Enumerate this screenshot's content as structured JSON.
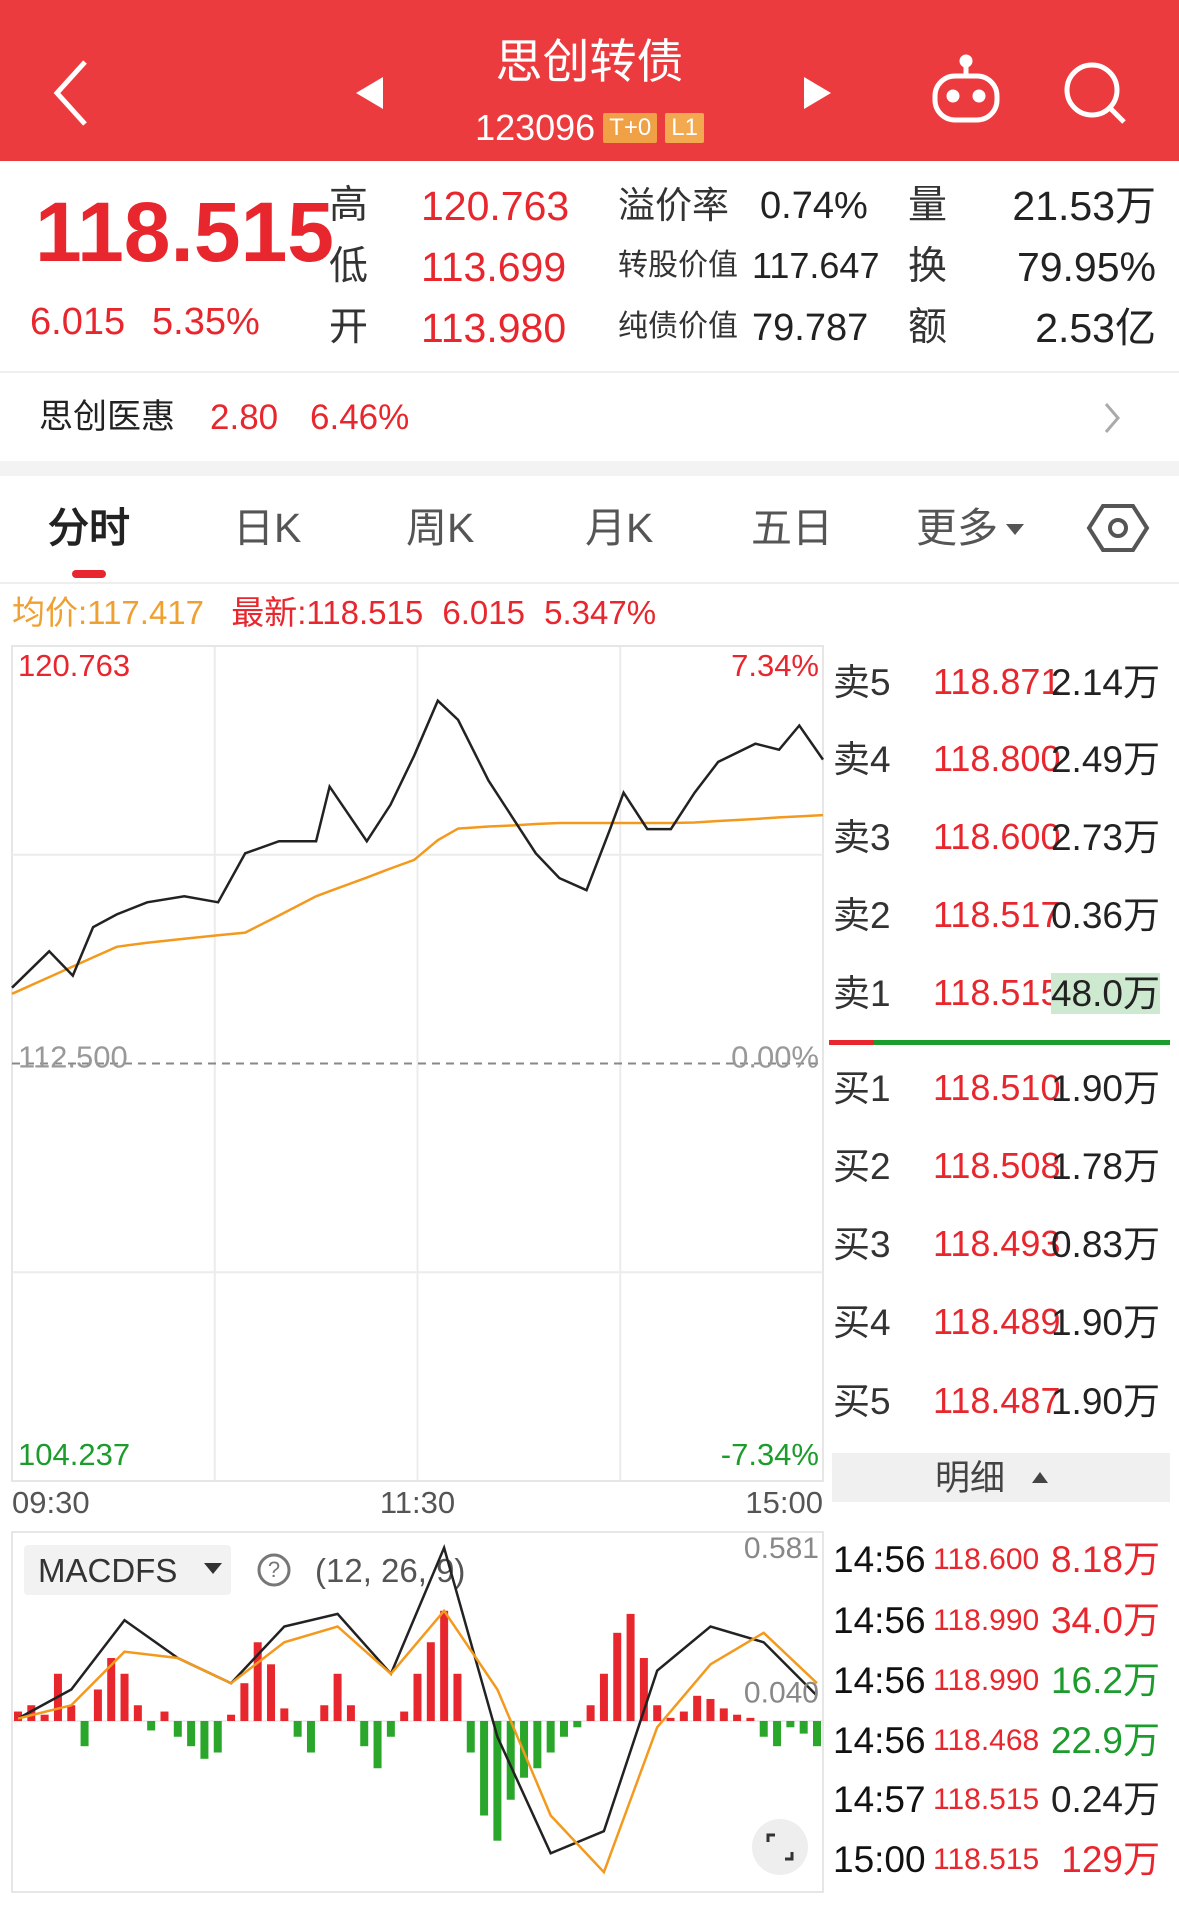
{
  "header": {
    "title": "思创转债",
    "code": "123096",
    "badges": [
      "T+0",
      "L1"
    ]
  },
  "quote": {
    "price": "118.515",
    "change": "6.015",
    "change_pct": "5.35%",
    "stats": [
      [
        {
          "label": "高",
          "value": "120.763"
        },
        {
          "label": "低",
          "value": "113.699"
        },
        {
          "label": "开",
          "value": "113.980"
        }
      ],
      [
        {
          "label": "溢价率",
          "value": "0.74%"
        },
        {
          "label": "转股价值",
          "value": "117.647"
        },
        {
          "label": "纯债价值",
          "value": "79.787"
        }
      ],
      [
        {
          "label": "量",
          "value": "21.53万"
        },
        {
          "label": "换",
          "value": "79.95%"
        },
        {
          "label": "额",
          "value": "2.53亿"
        }
      ]
    ]
  },
  "underlying": {
    "name": "思创医惠",
    "price": "2.80",
    "change_pct": "6.46%"
  },
  "tabs": [
    "分时",
    "日K",
    "周K",
    "月K",
    "五日",
    "更多"
  ],
  "summary": {
    "avg_label": "均价:",
    "avg": "117.417",
    "latest_label": "最新:",
    "latest": "118.515",
    "change": "6.015",
    "change_pct": "5.347%"
  },
  "chart_data": [
    {
      "type": "line",
      "x": [
        0,
        11,
        18,
        24,
        31,
        40,
        51,
        61,
        69,
        79,
        90,
        94,
        105,
        112,
        119,
        126,
        132,
        141,
        148,
        155,
        162,
        170,
        177,
        181,
        188,
        195,
        202,
        209,
        220,
        227,
        233,
        240
      ],
      "xlim": [
        0,
        240
      ],
      "xticks": [
        {
          "value": 0,
          "label": "09:30"
        },
        {
          "value": 120,
          "label": "11:30"
        },
        {
          "value": 240,
          "label": "15:00"
        }
      ],
      "ylim": [
        104.237,
        120.763
      ],
      "yticks": [
        120.763,
        {
          "value": 112.5,
          "label": "112.500"
        },
        104.237
      ],
      "y2lim": [
        -7.34,
        7.34
      ],
      "y2ticks": [
        {
          "value": 7.34,
          "label": "7.34%"
        },
        {
          "value": 0,
          "label": "0.00%"
        },
        {
          "value": -7.34,
          "label": "-7.34%"
        }
      ],
      "series": [
        {
          "color": "#222222",
          "values": [
            114.0,
            114.72,
            114.24,
            115.2,
            115.45,
            115.69,
            115.81,
            115.69,
            116.66,
            116.9,
            116.9,
            117.98,
            116.9,
            117.62,
            118.59,
            119.68,
            119.3,
            118.1,
            117.38,
            116.66,
            116.17,
            115.93,
            117.14,
            117.86,
            117.14,
            117.14,
            117.86,
            118.47,
            118.83,
            118.71,
            119.19,
            118.515
          ]
        },
        {
          "color": "#f39a1e",
          "values": [
            113.88,
            114.21,
            114.42,
            114.6,
            114.81,
            114.89,
            114.97,
            115.04,
            115.09,
            115.43,
            115.81,
            115.91,
            116.18,
            116.36,
            116.53,
            116.92,
            117.15,
            117.19,
            117.21,
            117.24,
            117.26,
            117.26,
            117.26,
            117.26,
            117.26,
            117.26,
            117.27,
            117.3,
            117.34,
            117.37,
            117.39,
            117.417
          ]
        }
      ]
    },
    {
      "type": "macd",
      "title": "MACDFS",
      "subtitle": "(12, 26, 9)",
      "ylim": [
        -0.527,
        0.581
      ],
      "yticks": [
        0.581,
        {
          "value": 0.04,
          "label": "0.040"
        }
      ],
      "xlim": [
        0,
        60
      ],
      "histogram": {
        "up_color": "#e8262d",
        "down_color": "#2aa62a",
        "values": [
          0.03,
          0.05,
          0.02,
          0.15,
          0.05,
          -0.08,
          0.1,
          0.2,
          0.15,
          0.05,
          -0.03,
          0.03,
          -0.05,
          -0.08,
          -0.12,
          -0.1,
          0.02,
          0.12,
          0.25,
          0.18,
          0.04,
          -0.05,
          -0.1,
          0.05,
          0.15,
          0.05,
          -0.08,
          -0.15,
          -0.05,
          0.03,
          0.15,
          0.25,
          0.35,
          0.15,
          -0.1,
          -0.3,
          -0.38,
          -0.25,
          -0.18,
          -0.15,
          -0.1,
          -0.05,
          -0.02,
          0.05,
          0.15,
          0.28,
          0.34,
          0.2,
          0.05,
          0.01,
          0.03,
          0.08,
          0.07,
          0.04,
          0.02,
          0.01,
          -0.05,
          -0.08,
          -0.02,
          -0.04,
          -0.08
        ]
      },
      "x": [
        0,
        4,
        8,
        12,
        16,
        20,
        24,
        28,
        32,
        36,
        40,
        44,
        48,
        52,
        56,
        60
      ],
      "series": [
        {
          "color": "#222222",
          "values": [
            0.008,
            0.1,
            0.32,
            0.2,
            0.12,
            0.3,
            0.34,
            0.15,
            0.55,
            -0.05,
            -0.42,
            -0.35,
            0.16,
            0.3,
            0.25,
            0.08
          ]
        },
        {
          "color": "#f39a1e",
          "values": [
            0.008,
            0.05,
            0.22,
            0.2,
            0.12,
            0.25,
            0.3,
            0.15,
            0.35,
            0.1,
            -0.3,
            -0.48,
            -0.02,
            0.18,
            0.28,
            0.12
          ]
        }
      ]
    }
  ],
  "order_book": {
    "asks": [
      {
        "label": "卖5",
        "price": "118.871",
        "volume": "2.14万"
      },
      {
        "label": "卖4",
        "price": "118.800",
        "volume": "2.49万"
      },
      {
        "label": "卖3",
        "price": "118.600",
        "volume": "2.73万"
      },
      {
        "label": "卖2",
        "price": "118.517",
        "volume": "0.36万"
      },
      {
        "label": "卖1",
        "price": "118.515",
        "volume": "48.0万"
      }
    ],
    "bids": [
      {
        "label": "买1",
        "price": "118.510",
        "volume": "1.90万"
      },
      {
        "label": "买2",
        "price": "118.508",
        "volume": "1.78万"
      },
      {
        "label": "买3",
        "price": "118.493",
        "volume": "0.83万"
      },
      {
        "label": "买4",
        "price": "118.489",
        "volume": "1.90万"
      },
      {
        "label": "买5",
        "price": "118.487",
        "volume": "1.90万"
      }
    ]
  },
  "trades": {
    "title": "明细",
    "rows": [
      {
        "time": "14:56",
        "price": "118.600",
        "volume": "8.18万",
        "color": "#e8262d"
      },
      {
        "time": "14:56",
        "price": "118.990",
        "volume": "34.0万",
        "color": "#e8262d"
      },
      {
        "time": "14:56",
        "price": "118.990",
        "volume": "16.2万",
        "color": "#1c9c2c"
      },
      {
        "time": "14:56",
        "price": "118.468",
        "volume": "22.9万",
        "color": "#1c9c2c"
      },
      {
        "time": "14:57",
        "price": "118.515",
        "volume": "0.24万",
        "color": "#222222"
      },
      {
        "time": "15:00",
        "price": "118.515",
        "volume": "129万",
        "color": "#e8262d"
      }
    ]
  }
}
